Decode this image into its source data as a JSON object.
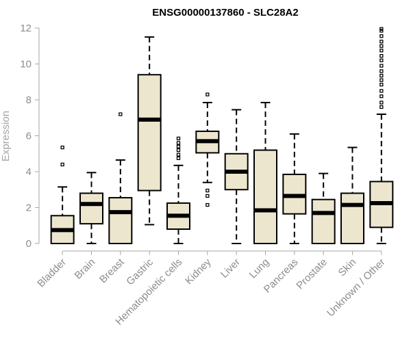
{
  "chart_data": {
    "type": "boxplot",
    "title": "ENSG00000137860 - SLC28A2",
    "xlabel": "",
    "ylabel": "Expression",
    "ylim": [
      0,
      12
    ],
    "yticks": [
      0,
      2,
      4,
      6,
      8,
      10,
      12
    ],
    "grid": false,
    "box_fill": "#ede6cf",
    "box_stroke": "#000000",
    "axis_color": "#a6a6a6",
    "categories": [
      "Bladder",
      "Brain",
      "Breast",
      "Gastric",
      "Hematopoietic cells",
      "Kidney",
      "Liver",
      "Lung",
      "Pancreas",
      "Prostate",
      "Skin",
      "Unknown / Other"
    ],
    "boxes": [
      {
        "min": 0.0,
        "q1": 0.0,
        "median": 0.75,
        "q3": 1.55,
        "max": 3.15,
        "outliers": [
          4.4,
          5.35
        ]
      },
      {
        "min": 0.0,
        "q1": 1.1,
        "median": 2.2,
        "q3": 2.8,
        "max": 3.95,
        "outliers": []
      },
      {
        "min": 0.0,
        "q1": 0.0,
        "median": 1.75,
        "q3": 2.55,
        "max": 4.65,
        "outliers": [
          7.2
        ]
      },
      {
        "min": 1.05,
        "q1": 2.95,
        "median": 6.9,
        "q3": 9.4,
        "max": 11.5,
        "outliers": []
      },
      {
        "min": 0.0,
        "q1": 0.8,
        "median": 1.55,
        "q3": 2.25,
        "max": 4.35,
        "outliers": [
          4.75,
          4.95,
          5.2,
          5.4,
          5.6,
          5.85
        ]
      },
      {
        "min": 3.4,
        "q1": 5.05,
        "median": 5.7,
        "q3": 6.25,
        "max": 7.85,
        "outliers": [
          2.15,
          2.65,
          2.95,
          8.3
        ]
      },
      {
        "min": 0.0,
        "q1": 3.0,
        "median": 4.0,
        "q3": 5.0,
        "max": 7.45,
        "outliers": []
      },
      {
        "min": 0.0,
        "q1": 0.0,
        "median": 1.85,
        "q3": 5.2,
        "max": 7.85,
        "outliers": []
      },
      {
        "min": 0.0,
        "q1": 1.65,
        "median": 2.65,
        "q3": 3.85,
        "max": 6.1,
        "outliers": []
      },
      {
        "min": 0.0,
        "q1": 0.0,
        "median": 1.7,
        "q3": 2.45,
        "max": 3.9,
        "outliers": []
      },
      {
        "min": 0.0,
        "q1": 0.0,
        "median": 2.15,
        "q3": 2.8,
        "max": 5.35,
        "outliers": []
      },
      {
        "min": 0.0,
        "q1": 0.9,
        "median": 2.25,
        "q3": 3.45,
        "max": 7.2,
        "outliers": [
          7.6,
          7.85,
          8.2,
          8.5,
          8.85,
          9.1,
          9.35,
          9.6,
          9.9,
          10.2,
          10.45,
          10.75,
          11.0,
          11.25,
          11.55,
          11.85,
          11.95
        ]
      }
    ]
  }
}
